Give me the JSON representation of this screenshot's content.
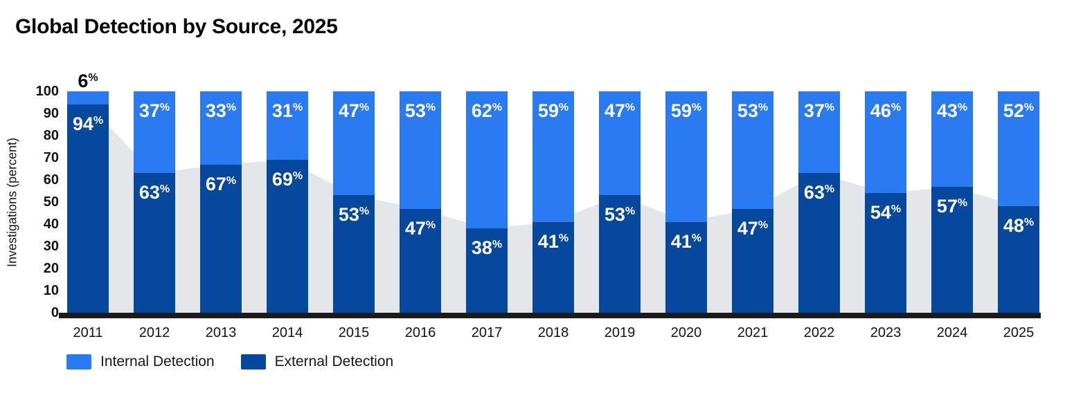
{
  "title": "Global Detection by Source, 2025",
  "chart_data": {
    "type": "bar",
    "stacked": true,
    "title": "Global Detection by Source, 2025",
    "xlabel": "",
    "ylabel": "Investigations (percent)",
    "categories": [
      "2011",
      "2012",
      "2013",
      "2014",
      "2015",
      "2016",
      "2017",
      "2018",
      "2019",
      "2020",
      "2021",
      "2022",
      "2023",
      "2024",
      "2025"
    ],
    "series": [
      {
        "name": "Internal Detection",
        "color": "#2A7BF2",
        "values": [
          6,
          37,
          33,
          31,
          47,
          53,
          62,
          59,
          47,
          59,
          53,
          37,
          46,
          43,
          52
        ]
      },
      {
        "name": "External Detection",
        "color": "#05489D",
        "values": [
          94,
          63,
          67,
          69,
          53,
          47,
          38,
          41,
          53,
          41,
          47,
          63,
          54,
          57,
          48
        ]
      }
    ],
    "area_backdrop": {
      "follows": "External Detection",
      "color": "#E4E6EA"
    },
    "value_suffix": "%",
    "yticks": [
      0,
      10,
      20,
      30,
      40,
      50,
      60,
      70,
      80,
      90,
      100
    ],
    "ylim": [
      0,
      100
    ],
    "grid": false,
    "legend_position": "bottom-left",
    "bar_label_color_inside": "#FFFFFF",
    "bar_label_color_above": "#0B0B0B",
    "axis_baseline_color": "#1B1B1B"
  },
  "legend": {
    "items": [
      {
        "label": "Internal Detection",
        "color": "#2A7BF2"
      },
      {
        "label": "External Detection",
        "color": "#05489D"
      }
    ]
  }
}
